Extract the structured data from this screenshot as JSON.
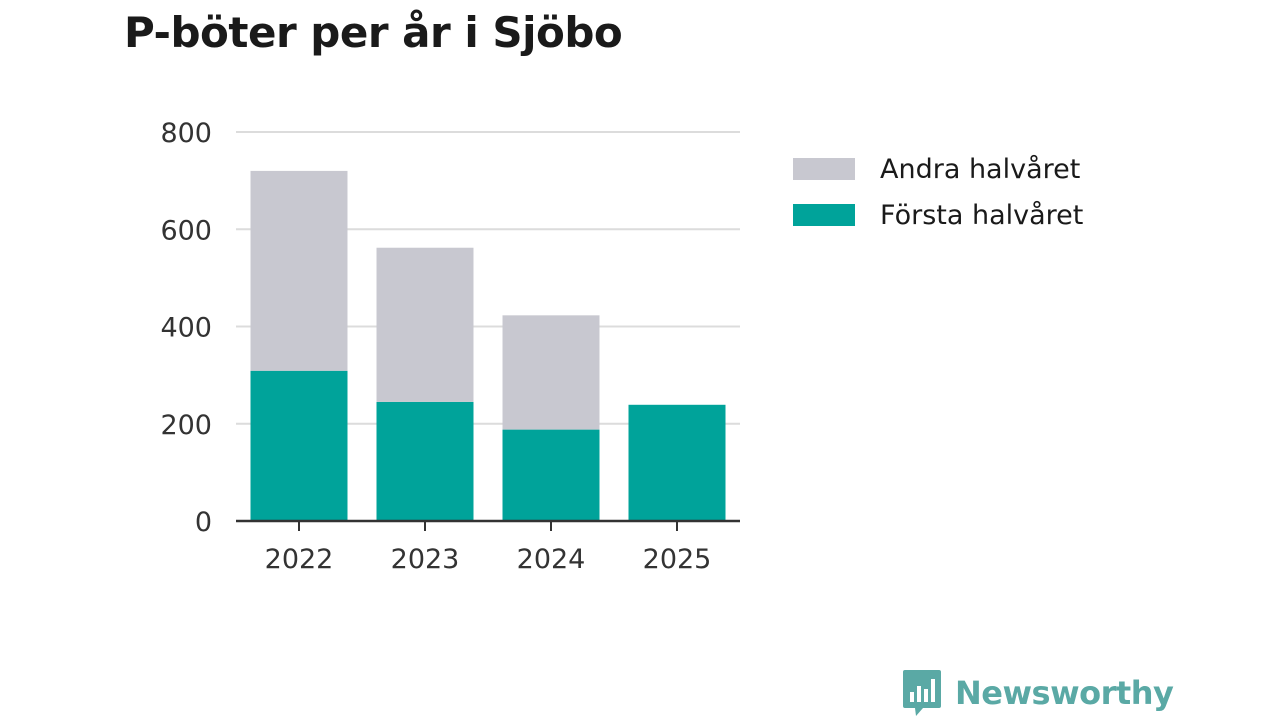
{
  "title": "P-böter per år i Sjöbo",
  "chart_data": {
    "type": "bar",
    "stacked": true,
    "title": "P-böter per år i Sjöbo",
    "categories": [
      "2022",
      "2023",
      "2024",
      "2025"
    ],
    "series": [
      {
        "name": "Första halvåret",
        "color": "#00a39a",
        "values": [
          309,
          245,
          188,
          239
        ]
      },
      {
        "name": "Andra halvåret",
        "color": "#c8c8d0",
        "values": [
          411,
          317,
          235,
          0
        ]
      }
    ],
    "ylim": [
      0,
      800
    ],
    "yticks": [
      0,
      200,
      400,
      600,
      800
    ],
    "xlabel": "",
    "ylabel": "",
    "grid": true,
    "legend_placement": "right"
  },
  "legend": [
    {
      "label": "Andra halvåret",
      "color": "#c8c8d0"
    },
    {
      "label": "Första halvåret",
      "color": "#00a39a"
    }
  ],
  "brand": {
    "name": "Newsworthy",
    "icon": "newsworthy-logo-icon",
    "color": "#5aa9a5"
  }
}
